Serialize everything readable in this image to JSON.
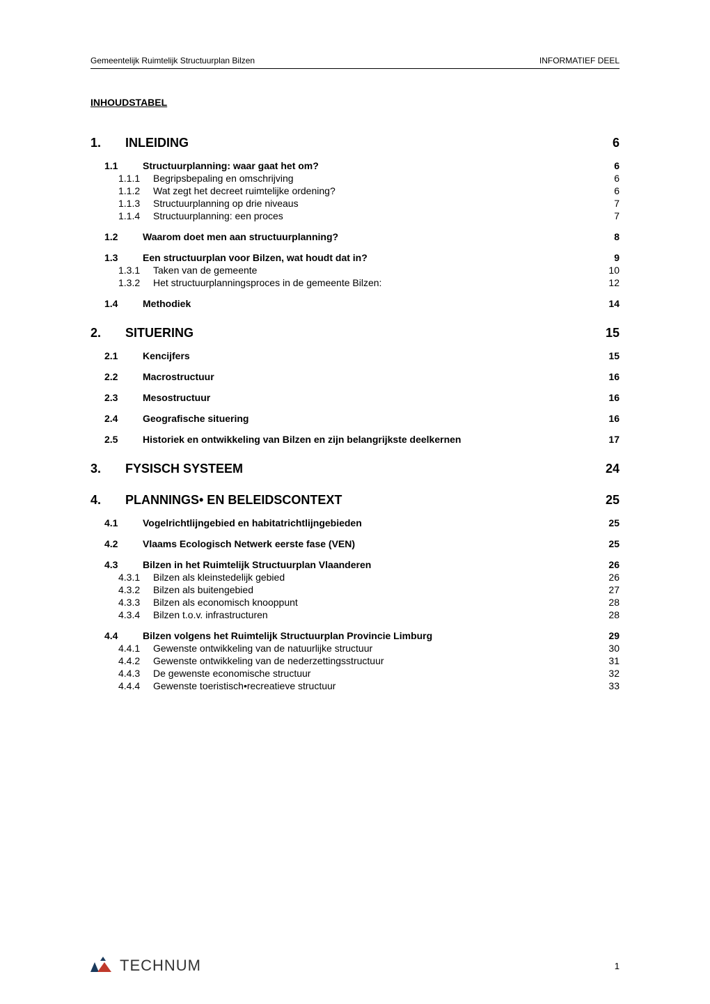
{
  "header": {
    "left": "Gemeentelijk Ruimtelijk Structuurplan Bilzen",
    "right": "INFORMATIEF DEEL"
  },
  "title": "INHOUDSTABEL",
  "toc": [
    {
      "level": 1,
      "num": "1.",
      "text": "INLEIDING",
      "page": "6"
    },
    {
      "level": 2,
      "num": "1.1",
      "text": "Structuurplanning: waar gaat het om?",
      "page": "6"
    },
    {
      "level": 3,
      "num": "1.1.1",
      "text": "Begripsbepaling en omschrijving",
      "page": "6"
    },
    {
      "level": 3,
      "num": "1.1.2",
      "text": "Wat zegt het decreet ruimtelijke ordening?",
      "page": "6"
    },
    {
      "level": 3,
      "num": "1.1.3",
      "text": "Structuurplanning op drie niveaus",
      "page": "7"
    },
    {
      "level": 3,
      "num": "1.1.4",
      "text": "Structuurplanning: een proces",
      "page": "7"
    },
    {
      "level": 2,
      "num": "1.2",
      "text": "Waarom doet men aan structuurplanning?",
      "page": "8"
    },
    {
      "level": 2,
      "num": "1.3",
      "text": "Een structuurplan voor Bilzen, wat houdt dat in?",
      "page": "9"
    },
    {
      "level": 3,
      "num": "1.3.1",
      "text": "Taken van de gemeente",
      "page": "10"
    },
    {
      "level": 3,
      "num": "1.3.2",
      "text": "Het structuurplanningsproces in de gemeente Bilzen:",
      "page": "12"
    },
    {
      "level": 2,
      "num": "1.4",
      "text": "Methodiek",
      "page": "14"
    },
    {
      "level": 1,
      "num": "2.",
      "text": "SITUERING",
      "page": "15"
    },
    {
      "level": 2,
      "num": "2.1",
      "text": "Kencijfers",
      "page": "15"
    },
    {
      "level": 2,
      "num": "2.2",
      "text": "Macrostructuur",
      "page": "16"
    },
    {
      "level": 2,
      "num": "2.3",
      "text": "Mesostructuur",
      "page": "16"
    },
    {
      "level": 2,
      "num": "2.4",
      "text": "Geografische situering",
      "page": "16"
    },
    {
      "level": 2,
      "num": "2.5",
      "text": "Historiek en ontwikkeling van Bilzen en zijn belangrijkste deelkernen",
      "page": "17"
    },
    {
      "level": 1,
      "num": "3.",
      "text": "FYSISCH SYSTEEM",
      "page": "24"
    },
    {
      "level": 1,
      "num": "4.",
      "text": "PLANNINGS• EN BELEIDSCONTEXT",
      "page": "25"
    },
    {
      "level": 2,
      "num": "4.1",
      "text": "Vogelrichtlijngebied en habitatrichtlijngebieden",
      "page": "25"
    },
    {
      "level": 2,
      "num": "4.2",
      "text": "Vlaams Ecologisch Netwerk eerste fase (VEN)",
      "page": "25"
    },
    {
      "level": 2,
      "num": "4.3",
      "text": "Bilzen in het Ruimtelijk Structuurplan Vlaanderen",
      "page": "26"
    },
    {
      "level": 3,
      "num": "4.3.1",
      "text": "Bilzen als kleinstedelijk gebied",
      "page": "26"
    },
    {
      "level": 3,
      "num": "4.3.2",
      "text": "Bilzen als buitengebied",
      "page": "27"
    },
    {
      "level": 3,
      "num": "4.3.3",
      "text": "Bilzen als economisch knooppunt",
      "page": "28"
    },
    {
      "level": 3,
      "num": "4.3.4",
      "text": "Bilzen t.o.v. infrastructuren",
      "page": "28"
    },
    {
      "level": 2,
      "num": "4.4",
      "text": "Bilzen volgens het Ruimtelijk Structuurplan Provincie Limburg",
      "page": "29"
    },
    {
      "level": 3,
      "num": "4.4.1",
      "text": "Gewenste ontwikkeling van de natuurlijke structuur",
      "page": "30"
    },
    {
      "level": 3,
      "num": "4.4.2",
      "text": "Gewenste ontwikkeling van de nederzettingsstructuur",
      "page": "31"
    },
    {
      "level": 3,
      "num": "4.4.3",
      "text": "De gewenste economische structuur",
      "page": "32"
    },
    {
      "level": 3,
      "num": "4.4.4",
      "text": "Gewenste toeristisch•recreatieve structuur",
      "page": "33"
    }
  ],
  "footer": {
    "logo_text": "TECHNUM",
    "page_number": "1"
  },
  "styles": {
    "background_color": "#ffffff",
    "text_color": "#000000",
    "h1_fontsize": 18,
    "h2_fontsize": 14,
    "h3_fontsize": 14,
    "header_fontsize": 12,
    "logo_color_dark": "#1a3a5c",
    "logo_color_red": "#c0392b"
  }
}
